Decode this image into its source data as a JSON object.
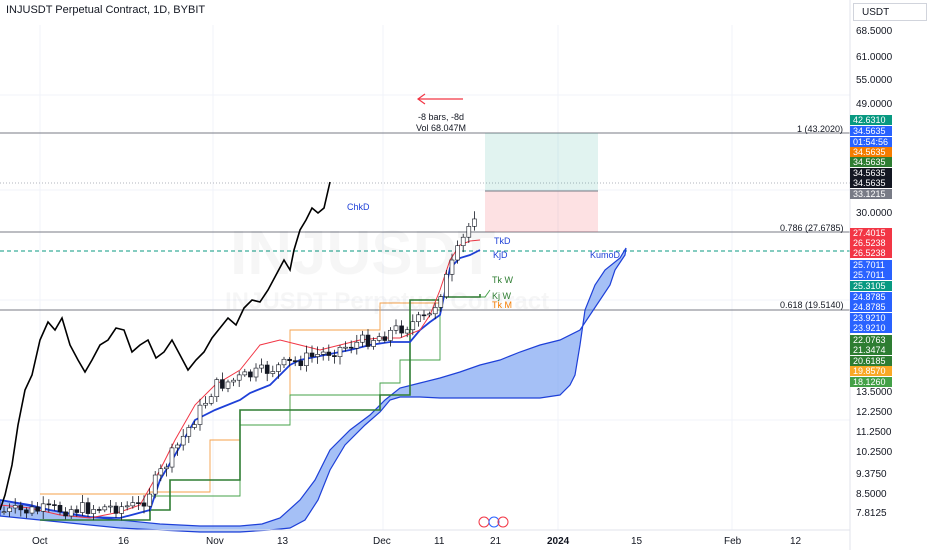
{
  "header": {
    "title": "INJUSDT Perpetual Contract, 1D, BYBIT",
    "currency": "USDT"
  },
  "watermark": {
    "symbol": "INJUSDT",
    "name": "INJUSDT Perpetual Contract"
  },
  "measure": {
    "bars": "-8 bars, -8d",
    "vol": "Vol 68.047M"
  },
  "fib": [
    {
      "label": "1 (43.2020)"
    },
    {
      "label": "0.786 (27.6785)"
    },
    {
      "label": "0.618 (19.5140)"
    }
  ],
  "line_labels": {
    "chikou": "ChkD",
    "tenkan_d": "TkD",
    "kijun_d": "KjD",
    "kumo": "KumoD",
    "tenkan_w": "Tk W",
    "kijun_w": "Kj W",
    "tenkan_m": "Tk M"
  },
  "y_axis": [
    "68.5000",
    "61.0000",
    "55.0000",
    "49.0000",
    "30.0000",
    "13.5000",
    "12.2500",
    "11.2500",
    "10.2500",
    "9.3750",
    "8.5000",
    "7.8125"
  ],
  "x_axis": [
    "Oct",
    "16",
    "Nov",
    "13",
    "Dec",
    "11",
    "21",
    "2024",
    "15",
    "Feb",
    "12"
  ],
  "price_tags": [
    {
      "value": "42.6310",
      "color": "#089981"
    },
    {
      "value": "34.5635",
      "color": "#2962ff"
    },
    {
      "value": "01:54:56",
      "color": "#2962ff"
    },
    {
      "value": "34.5635",
      "color": "#f57c00"
    },
    {
      "value": "34.5635",
      "color": "#2e7d32"
    },
    {
      "value": "34.5635",
      "color": "#131722"
    },
    {
      "value": "34.5635",
      "color": "#131722"
    },
    {
      "value": "33.1215",
      "color": "#787b86"
    },
    {
      "value": "27.4015",
      "color": "#f23645"
    },
    {
      "value": "26.5238",
      "color": "#f23645"
    },
    {
      "value": "26.5238",
      "color": "#f23645"
    },
    {
      "value": "25.7011",
      "color": "#2962ff"
    },
    {
      "value": "25.7011",
      "color": "#2962ff"
    },
    {
      "value": "25.3105",
      "color": "#089981"
    },
    {
      "value": "24.8785",
      "color": "#2962ff"
    },
    {
      "value": "24.8785",
      "color": "#2962ff"
    },
    {
      "value": "23.9210",
      "color": "#2962ff"
    },
    {
      "value": "23.9210",
      "color": "#2962ff"
    },
    {
      "value": "22.0763",
      "color": "#2e7d32"
    },
    {
      "value": "21.3474",
      "color": "#2e7d32"
    },
    {
      "value": "20.6185",
      "color": "#2e7d32"
    },
    {
      "value": "19.8570",
      "color": "#f9a825"
    },
    {
      "value": "18.1260",
      "color": "#43a047"
    }
  ],
  "colors": {
    "up": "#089981",
    "down": "#f23645",
    "kumo": "#5b8def",
    "chikou": "#000000",
    "tenkan": "#f23645",
    "kijun": "#1e40d8",
    "weekly": "#2e7d32",
    "monthly": "#f5a04a"
  }
}
